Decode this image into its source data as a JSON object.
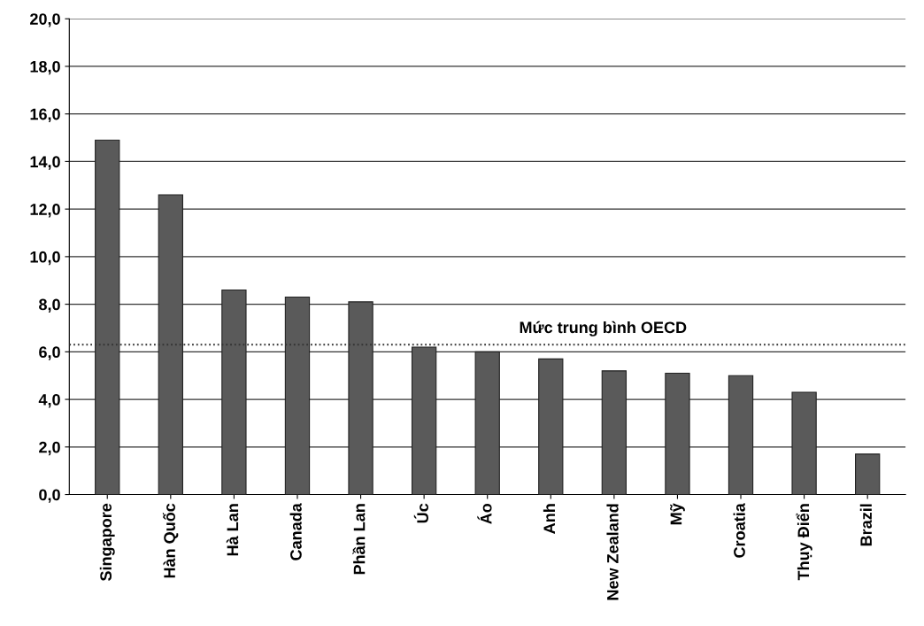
{
  "chart_data": {
    "type": "bar",
    "categories": [
      "Singapore",
      "Hàn Quốc",
      "Hà Lan",
      "Canada",
      "Phần Lan",
      "Úc",
      "Áo",
      "Anh",
      "New Zealand",
      "Mỹ",
      "Croatia",
      "Thụy Điển",
      "Brazil"
    ],
    "values": [
      14.9,
      12.6,
      8.6,
      8.3,
      8.1,
      6.2,
      6.0,
      5.7,
      5.2,
      5.1,
      5.0,
      4.3,
      1.7
    ],
    "color": "#5a5a5a",
    "ylim": [
      0,
      20
    ],
    "yticks": [
      {
        "value": 0,
        "label": "0,0"
      },
      {
        "value": 2,
        "label": "2,0"
      },
      {
        "value": 4,
        "label": "4,0"
      },
      {
        "value": 6,
        "label": "6,0"
      },
      {
        "value": 8,
        "label": "8,0"
      },
      {
        "value": 10,
        "label": "10,0"
      },
      {
        "value": 12,
        "label": "12,0"
      },
      {
        "value": 14,
        "label": "14,0"
      },
      {
        "value": 16,
        "label": "16,0"
      },
      {
        "value": 18,
        "label": "18,0"
      },
      {
        "value": 20,
        "label": "20,0"
      }
    ],
    "grid": "y",
    "ref_lines": [
      {
        "axis": "y",
        "value": 6.3,
        "label": "Mức trung bình OECD",
        "color": "#333333",
        "line_style": "dotted"
      }
    ]
  }
}
